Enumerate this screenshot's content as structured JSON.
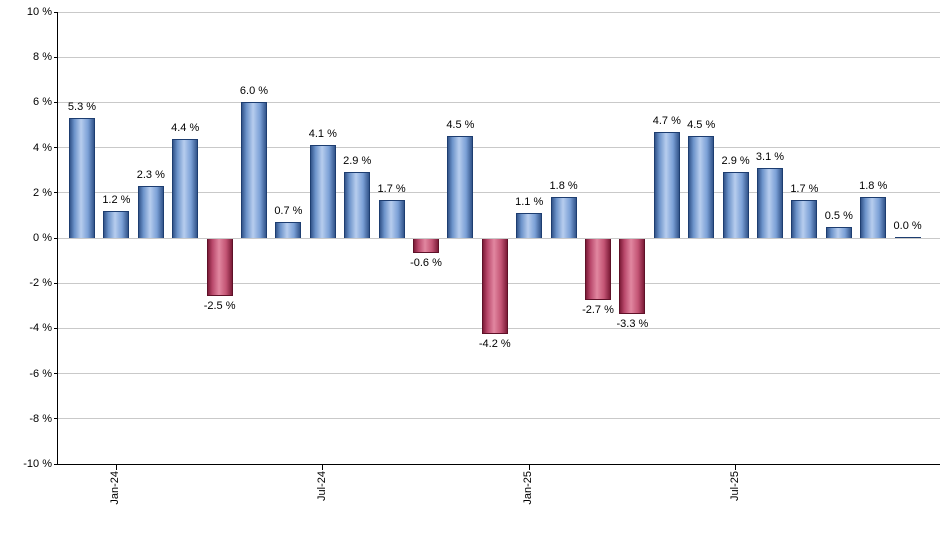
{
  "chart_data": {
    "type": "bar",
    "title": "",
    "xlabel": "",
    "ylabel": "",
    "ylim": [
      -10,
      10
    ],
    "grid": true,
    "legend": "none",
    "value_label_format": "{value} %",
    "y_ticks": [
      {
        "value": 10,
        "label": "10 %"
      },
      {
        "value": 8,
        "label": "8 %"
      },
      {
        "value": 6,
        "label": "6 %"
      },
      {
        "value": 4,
        "label": "4 %"
      },
      {
        "value": 2,
        "label": "2 %"
      },
      {
        "value": 0,
        "label": "0 %"
      },
      {
        "value": -2,
        "label": "-2 %"
      },
      {
        "value": -4,
        "label": "-4 %"
      },
      {
        "value": -6,
        "label": "-6 %"
      },
      {
        "value": -8,
        "label": "-8 %"
      },
      {
        "value": -10,
        "label": "-10 %"
      }
    ],
    "x_ticks": [
      {
        "bar_index": 1,
        "label": "Jan-24"
      },
      {
        "bar_index": 7,
        "label": "Jul-24"
      },
      {
        "bar_index": 13,
        "label": "Jan-25"
      },
      {
        "bar_index": 19,
        "label": "Jul-25"
      }
    ],
    "bars": [
      {
        "value": 5.3,
        "label": "5.3 %"
      },
      {
        "value": 1.2,
        "label": "1.2 %"
      },
      {
        "value": 2.3,
        "label": "2.3 %"
      },
      {
        "value": 4.4,
        "label": "4.4 %"
      },
      {
        "value": -2.5,
        "label": "-2.5 %"
      },
      {
        "value": 6.0,
        "label": "6.0 %"
      },
      {
        "value": 0.7,
        "label": "0.7 %"
      },
      {
        "value": 4.1,
        "label": "4.1 %"
      },
      {
        "value": 2.9,
        "label": "2.9 %"
      },
      {
        "value": 1.7,
        "label": "1.7 %"
      },
      {
        "value": -0.6,
        "label": "-0.6 %"
      },
      {
        "value": 4.5,
        "label": "4.5 %"
      },
      {
        "value": -4.2,
        "label": "-4.2 %"
      },
      {
        "value": 1.1,
        "label": "1.1 %"
      },
      {
        "value": 1.8,
        "label": "1.8 %"
      },
      {
        "value": -2.7,
        "label": "-2.7 %"
      },
      {
        "value": -3.3,
        "label": "-3.3 %"
      },
      {
        "value": 4.7,
        "label": "4.7 %"
      },
      {
        "value": 4.5,
        "label": "4.5 %"
      },
      {
        "value": 2.9,
        "label": "2.9 %"
      },
      {
        "value": 3.1,
        "label": "3.1 %"
      },
      {
        "value": 1.7,
        "label": "1.7 %"
      },
      {
        "value": 0.5,
        "label": "0.5 %"
      },
      {
        "value": 1.8,
        "label": "1.8 %"
      },
      {
        "value": 0.0,
        "label": "0.0 %"
      }
    ],
    "colors": {
      "positive_bar_edge": "#33558b",
      "positive_bar_mid": "#b7cdee",
      "positive_bar_border": "#1d3d70",
      "negative_bar_edge": "#7d1c38",
      "negative_bar_mid": "#e187a0",
      "negative_bar_border": "#5e1128",
      "gridline": "#c9c9c9",
      "axis": "#000000",
      "label_text": "#000000",
      "background": "#ffffff"
    }
  }
}
